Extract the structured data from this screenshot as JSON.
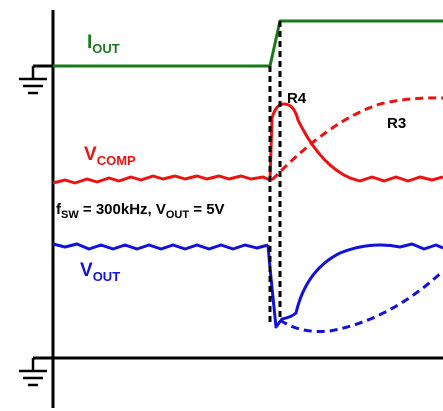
{
  "colors": {
    "iout": "#1a7a1a",
    "vcomp": "#ee1111",
    "vout": "#1111dd",
    "axis": "#000000",
    "background": "#ffffff"
  },
  "labels": {
    "iout_main": "I",
    "iout_sub": "OUT",
    "vcomp_main": "V",
    "vcomp_sub": "COMP",
    "vout_main": "V",
    "vout_sub": "OUT",
    "r4": "R4",
    "r3": "R3",
    "cond_f": "f",
    "cond_f_sub": "SW",
    "cond_mid": " = 300kHz, V",
    "cond_v_sub": "OUT",
    "cond_end": " = 5V"
  },
  "icons": {
    "ground_top": "ground-symbol-icon",
    "ground_bottom": "ground-symbol-icon"
  }
}
